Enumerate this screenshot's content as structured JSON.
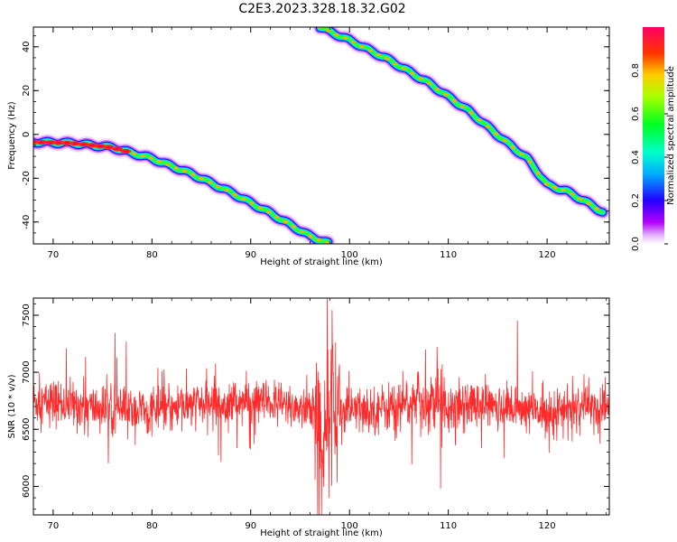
{
  "figure": {
    "title": "C2E3.2023.328.18.32.G02"
  },
  "chart_data": [
    {
      "type": "heatmap",
      "xlabel": "Height of straight line (km)",
      "ylabel": "Frequency (Hz)",
      "xlim": [
        68,
        126.3
      ],
      "ylim": [
        -50,
        49
      ],
      "xticks": [
        "70",
        "80",
        "90",
        "100",
        "110",
        "120"
      ],
      "yticks": [
        "40",
        "20",
        "0",
        "-20",
        "-40"
      ],
      "ytick_values": [
        40,
        20,
        0,
        -20,
        -40
      ],
      "xtick_values": [
        70,
        80,
        90,
        100,
        110,
        120
      ],
      "tracks": [
        {
          "x": [
            68,
            72,
            76,
            80,
            84,
            88,
            92,
            96,
            98
          ],
          "y": [
            -3.5,
            -4,
            -6,
            -11,
            -18,
            -26.5,
            -36,
            -46.5,
            -50
          ]
        },
        {
          "x": [
            97,
            100,
            104,
            108,
            112,
            116,
            118,
            120,
            122,
            124,
            125.8
          ],
          "y": [
            49,
            43,
            34,
            23.5,
            11,
            -4,
            -11,
            -23,
            -26,
            -31,
            -36
          ]
        }
      ],
      "colorbar": {
        "label": "Normalized spectral amplitude",
        "range": [
          0,
          1
        ],
        "ticks": [
          "0.0",
          "0.2",
          "0.4",
          "0.6",
          "0.8"
        ],
        "tick_values": [
          0,
          0.2,
          0.4,
          0.6,
          0.8
        ],
        "colormap": "gist_rainbow_r"
      },
      "grid": false
    },
    {
      "type": "line",
      "xlabel": "Height of straight line (km)",
      "ylabel": "SNR (10 * v/v)",
      "xlim": [
        68,
        126.3
      ],
      "ylim": [
        5750,
        7650
      ],
      "xticks": [
        "70",
        "80",
        "90",
        "100",
        "110",
        "120"
      ],
      "xtick_values": [
        70,
        80,
        90,
        100,
        110,
        120
      ],
      "yticks": [
        "7500",
        "7000",
        "6500",
        "6000"
      ],
      "ytick_values": [
        7500,
        7000,
        6500,
        6000
      ],
      "series": [
        {
          "color": "#ff2a2a",
          "mean": 6700,
          "noise_std": 170,
          "x_range": [
            68,
            126.3
          ],
          "max": 7650,
          "min": 5750
        }
      ],
      "grid": false
    }
  ]
}
